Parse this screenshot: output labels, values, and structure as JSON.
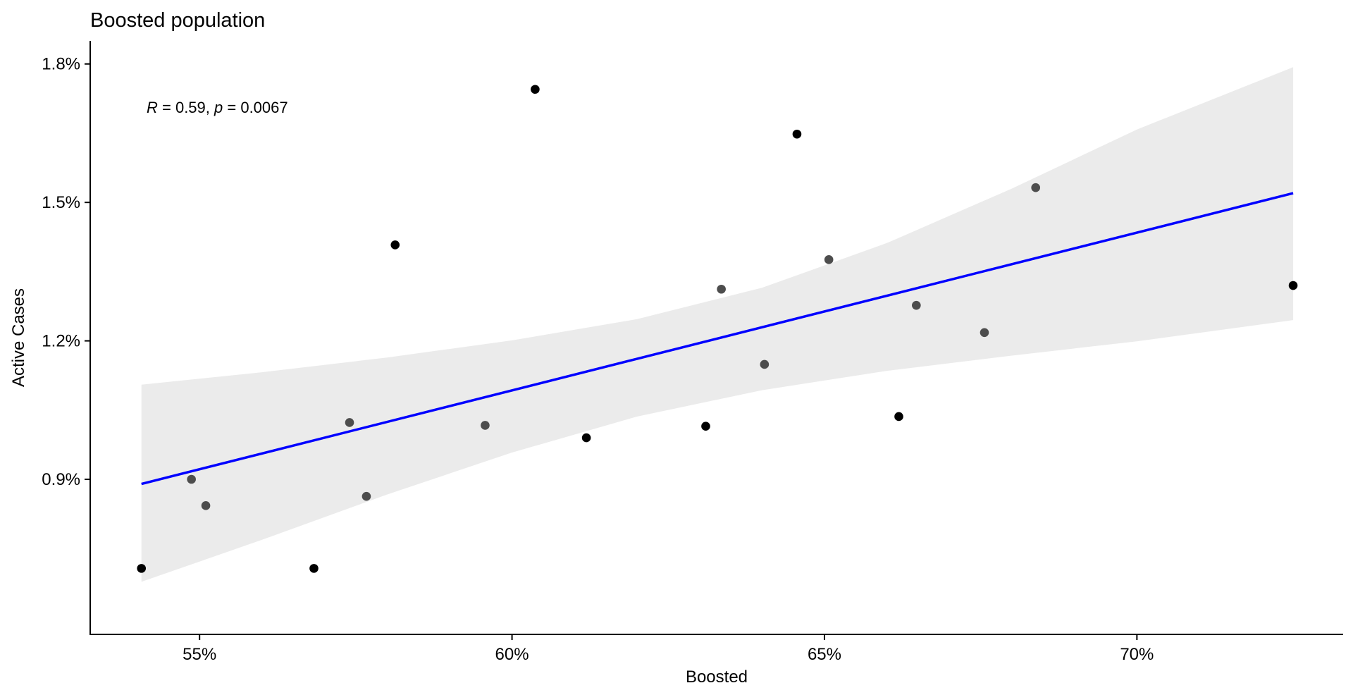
{
  "chart_data": {
    "type": "scatter",
    "title": "Boosted population",
    "xlabel": "Boosted",
    "ylabel": "Active Cases",
    "xlim": [
      0.5325,
      0.733
    ],
    "ylim": [
      0.00564,
      0.0185
    ],
    "x_ticks": [
      0.55,
      0.6,
      0.65,
      0.7
    ],
    "x_tick_labels": [
      "55%",
      "60%",
      "65%",
      "70%"
    ],
    "y_ticks": [
      0.009,
      0.012,
      0.015,
      0.018
    ],
    "y_tick_labels": [
      "0.9%",
      "1.2%",
      "1.5%",
      "1.8%"
    ],
    "grid": false,
    "annotation": {
      "r_symbol": "R",
      "r_value": " = 0.59, ",
      "p_symbol": "p",
      "p_value": " = 0.0067"
    },
    "points": [
      {
        "x": 0.5407,
        "y": 0.00707,
        "color": "#000000"
      },
      {
        "x": 0.5487,
        "y": 0.009,
        "color": "#4d4d4d"
      },
      {
        "x": 0.551,
        "y": 0.00843,
        "color": "#4d4d4d"
      },
      {
        "x": 0.5683,
        "y": 0.00707,
        "color": "#000000"
      },
      {
        "x": 0.574,
        "y": 0.01023,
        "color": "#4d4d4d"
      },
      {
        "x": 0.5767,
        "y": 0.00863,
        "color": "#4d4d4d"
      },
      {
        "x": 0.5813,
        "y": 0.01408,
        "color": "#000000"
      },
      {
        "x": 0.5957,
        "y": 0.01017,
        "color": "#4d4d4d"
      },
      {
        "x": 0.6037,
        "y": 0.01745,
        "color": "#000000"
      },
      {
        "x": 0.6119,
        "y": 0.0099,
        "color": "#000000"
      },
      {
        "x": 0.631,
        "y": 0.01015,
        "color": "#000000"
      },
      {
        "x": 0.6335,
        "y": 0.01312,
        "color": "#4d4d4d"
      },
      {
        "x": 0.6404,
        "y": 0.01149,
        "color": "#4d4d4d"
      },
      {
        "x": 0.6456,
        "y": 0.01648,
        "color": "#000000"
      },
      {
        "x": 0.6507,
        "y": 0.01376,
        "color": "#4d4d4d"
      },
      {
        "x": 0.6619,
        "y": 0.01036,
        "color": "#000000"
      },
      {
        "x": 0.6647,
        "y": 0.01277,
        "color": "#4d4d4d"
      },
      {
        "x": 0.6756,
        "y": 0.01218,
        "color": "#4d4d4d"
      },
      {
        "x": 0.6838,
        "y": 0.01532,
        "color": "#4d4d4d"
      },
      {
        "x": 0.725,
        "y": 0.0132,
        "color": "#000000"
      }
    ],
    "regression": {
      "x": [
        0.5407,
        0.725
      ],
      "y": [
        0.0089,
        0.0152
      ],
      "color": "#0000ff"
    },
    "confidence_band": {
      "color": "#ebebeb",
      "x": [
        0.5407,
        0.56,
        0.58,
        0.6,
        0.62,
        0.64,
        0.66,
        0.68,
        0.7,
        0.725
      ],
      "upper": [
        0.01105,
        0.01132,
        0.01164,
        0.01201,
        0.01247,
        0.01315,
        0.01412,
        0.0153,
        0.01658,
        0.01793
      ],
      "lower": [
        0.00678,
        0.00769,
        0.00867,
        0.00958,
        0.01036,
        0.01093,
        0.01135,
        0.01168,
        0.01199,
        0.01245
      ]
    }
  }
}
